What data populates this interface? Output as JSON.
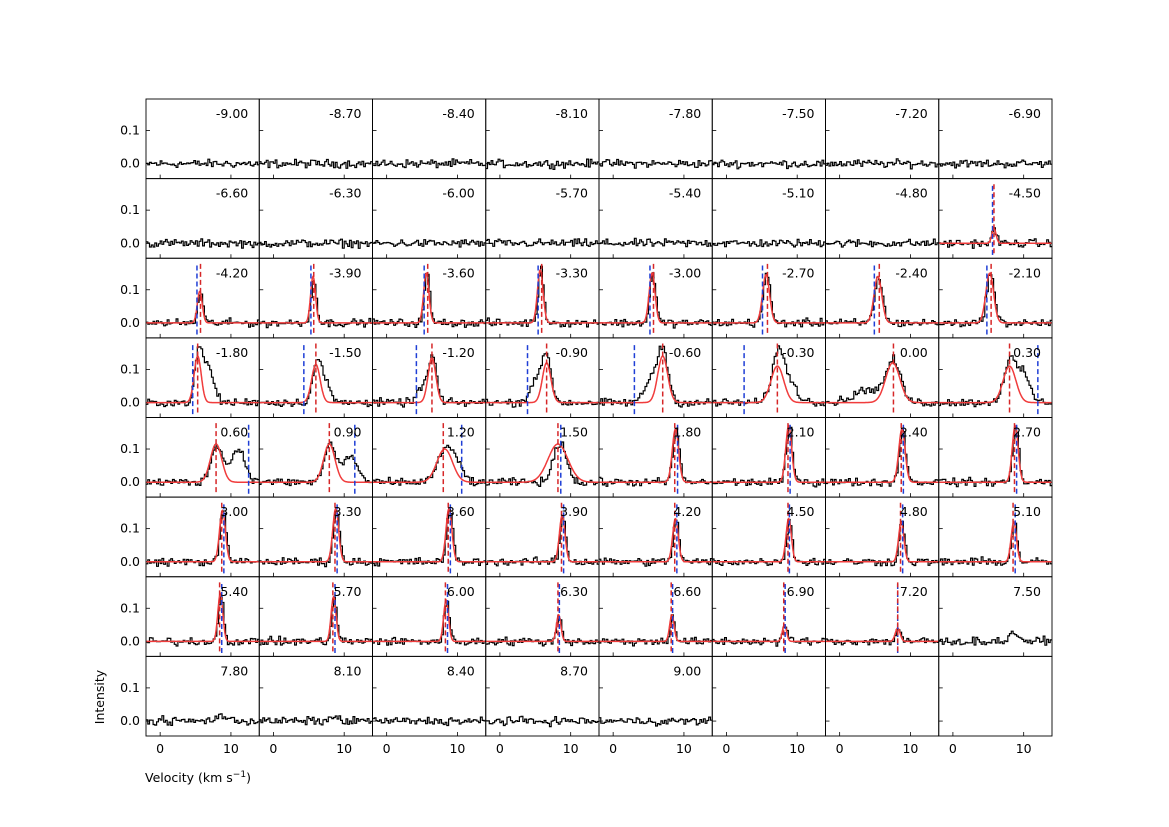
{
  "chart_data": {
    "type": "line",
    "layout": {
      "rows": 8,
      "cols": 8
    },
    "xlabel": "Velocity (km s",
    "xlabel_sup": "−1",
    "xlabel_close": ")",
    "ylabel": "Intensity",
    "xlim": [
      -2,
      14
    ],
    "ylim": [
      -0.045,
      0.195
    ],
    "xticks": [
      0,
      10
    ],
    "xtick_labels": [
      "0",
      "10"
    ],
    "yticks": [
      0.0,
      0.1
    ],
    "ytick_labels": [
      "0.0",
      "0.1"
    ],
    "colors": {
      "spectrum": "#000000",
      "fit": "#f03c3c",
      "fit_center": "#d62728",
      "second_component": "#1f3fd6"
    },
    "panels": [
      {
        "label": "-9.00"
      },
      {
        "label": "-8.70"
      },
      {
        "label": "-8.40"
      },
      {
        "label": "-8.10"
      },
      {
        "label": "-7.80"
      },
      {
        "label": "-7.50"
      },
      {
        "label": "-7.20"
      },
      {
        "label": "-6.90"
      },
      {
        "label": "-6.60"
      },
      {
        "label": "-6.30"
      },
      {
        "label": "-6.00"
      },
      {
        "label": "-5.70"
      },
      {
        "label": "-5.40"
      },
      {
        "label": "-5.10"
      },
      {
        "label": "-4.80"
      },
      {
        "label": "-4.50",
        "peak": {
          "center": 5.8,
          "amp": 0.045,
          "sigma": 0.3
        },
        "fit": {
          "center": 5.8,
          "amp": 0.045,
          "sigma": 0.3
        },
        "red_line": 5.8,
        "blue_line": 5.6
      },
      {
        "label": "-4.20",
        "peak": {
          "center": 5.6,
          "amp": 0.095,
          "sigma": 0.35
        },
        "fit": {
          "center": 5.6,
          "amp": 0.095,
          "sigma": 0.35
        },
        "red_line": 5.7,
        "blue_line": 5.2
      },
      {
        "label": "-3.90",
        "peak": {
          "center": 5.6,
          "amp": 0.14,
          "sigma": 0.35
        },
        "fit": {
          "center": 5.6,
          "amp": 0.14,
          "sigma": 0.35
        },
        "red_line": 5.7,
        "blue_line": 5.3
      },
      {
        "label": "-3.60",
        "peak": {
          "center": 5.6,
          "amp": 0.15,
          "sigma": 0.38
        },
        "fit": {
          "center": 5.6,
          "amp": 0.15,
          "sigma": 0.38
        },
        "red_line": 5.8,
        "blue_line": 5.3
      },
      {
        "label": "-3.30",
        "peak": {
          "center": 5.7,
          "amp": 0.16,
          "sigma": 0.4
        },
        "fit": {
          "center": 5.7,
          "amp": 0.16,
          "sigma": 0.4
        },
        "red_line": 5.9,
        "blue_line": 5.4
      },
      {
        "label": "-3.00",
        "peak": {
          "center": 5.5,
          "amp": 0.15,
          "sigma": 0.42
        },
        "fit": {
          "center": 5.5,
          "amp": 0.15,
          "sigma": 0.42
        },
        "red_line": 5.7,
        "blue_line": 5.2
      },
      {
        "label": "-2.70",
        "peak": {
          "center": 5.6,
          "amp": 0.145,
          "sigma": 0.5
        },
        "fit": {
          "center": 5.6,
          "amp": 0.145,
          "sigma": 0.5
        },
        "red_line": 5.8,
        "blue_line": 5.1
      },
      {
        "label": "-2.40",
        "peak": {
          "center": 5.4,
          "amp": 0.14,
          "sigma": 0.55
        },
        "fit": {
          "center": 5.4,
          "amp": 0.14,
          "sigma": 0.55
        },
        "red_line": 5.6,
        "blue_line": 4.9
      },
      {
        "label": "-2.10",
        "peak": {
          "center": 5.2,
          "amp": 0.15,
          "sigma": 0.55
        },
        "fit": {
          "center": 5.2,
          "amp": 0.15,
          "sigma": 0.55
        },
        "red_line": 5.4,
        "blue_line": 4.8
      },
      {
        "label": "-1.80",
        "peak": {
          "center": 5.3,
          "amp": 0.14,
          "sigma": 0.5
        },
        "peak2": {
          "center": 6.6,
          "amp": 0.11,
          "sigma": 0.8
        },
        "fit": {
          "center": 5.3,
          "amp": 0.14,
          "sigma": 0.5
        },
        "red_line": 5.3,
        "blue_line": 4.6
      },
      {
        "label": "-1.50",
        "peak": {
          "center": 6.0,
          "amp": 0.115,
          "sigma": 0.6
        },
        "peak2": {
          "center": 7.2,
          "amp": 0.06,
          "sigma": 0.7
        },
        "fit": {
          "center": 6.0,
          "amp": 0.115,
          "sigma": 0.6
        },
        "red_line": 6.0,
        "blue_line": 4.3
      },
      {
        "label": "-1.20",
        "peak": {
          "center": 6.4,
          "amp": 0.135,
          "sigma": 0.55
        },
        "peak2": {
          "center": 5.0,
          "amp": 0.05,
          "sigma": 0.7
        },
        "fit": {
          "center": 6.4,
          "amp": 0.135,
          "sigma": 0.55
        },
        "red_line": 6.4,
        "blue_line": 4.2
      },
      {
        "label": "-0.90",
        "peak": {
          "center": 6.6,
          "amp": 0.12,
          "sigma": 0.6
        },
        "peak2": {
          "center": 5.2,
          "amp": 0.08,
          "sigma": 0.9
        },
        "fit": {
          "center": 6.6,
          "amp": 0.12,
          "sigma": 0.6
        },
        "red_line": 6.6,
        "blue_line": 3.9
      },
      {
        "label": "-0.60",
        "peak": {
          "center": 7.0,
          "amp": 0.14,
          "sigma": 0.7
        },
        "peak2": {
          "center": 5.5,
          "amp": 0.08,
          "sigma": 1.0
        },
        "fit": {
          "center": 7.0,
          "amp": 0.14,
          "sigma": 0.7
        },
        "red_line": 7.0,
        "blue_line": 3.0
      },
      {
        "label": "-0.30",
        "peak": {
          "center": 7.2,
          "amp": 0.15,
          "sigma": 0.9
        },
        "peak2": {
          "center": 9.0,
          "amp": 0.05,
          "sigma": 1.0
        },
        "fit": {
          "center": 7.2,
          "amp": 0.11,
          "sigma": 0.9
        },
        "red_line": 7.2,
        "blue_line": 2.5
      },
      {
        "label": "0.00",
        "peak": {
          "center": 7.5,
          "amp": 0.12,
          "sigma": 1.0
        },
        "peak2": {
          "center": 4.0,
          "amp": 0.04,
          "sigma": 2.0
        },
        "fit": {
          "center": 7.5,
          "amp": 0.12,
          "sigma": 1.0
        },
        "red_line": 7.6
      },
      {
        "label": "0.30",
        "peak": {
          "center": 8.0,
          "amp": 0.13,
          "sigma": 0.9
        },
        "peak2": {
          "center": 10.0,
          "amp": 0.08,
          "sigma": 0.8
        },
        "fit": {
          "center": 8.0,
          "amp": 0.11,
          "sigma": 0.9
        },
        "red_line": 8.0,
        "blue_line": 12.0
      },
      {
        "label": "0.60",
        "peak": {
          "center": 7.9,
          "amp": 0.115,
          "sigma": 0.8
        },
        "peak2": {
          "center": 10.9,
          "amp": 0.1,
          "sigma": 1.0
        },
        "fit": {
          "center": 7.9,
          "amp": 0.115,
          "sigma": 0.8
        },
        "red_line": 7.9,
        "blue_line": 12.5
      },
      {
        "label": "0.90",
        "peak": {
          "center": 7.9,
          "amp": 0.115,
          "sigma": 0.8
        },
        "peak2": {
          "center": 10.7,
          "amp": 0.08,
          "sigma": 1.0
        },
        "fit": {
          "center": 7.9,
          "amp": 0.115,
          "sigma": 0.8
        },
        "red_line": 7.9,
        "blue_line": 11.5
      },
      {
        "label": "1.20",
        "peak": {
          "center": 8.2,
          "amp": 0.1,
          "sigma": 1.1
        },
        "peak2": {
          "center": 10.0,
          "amp": 0.04,
          "sigma": 0.8
        },
        "fit": {
          "center": 8.2,
          "amp": 0.1,
          "sigma": 1.1
        },
        "red_line": 8.0,
        "blue_line": 10.6
      },
      {
        "label": "1.50",
        "peak": {
          "center": 8.4,
          "amp": 0.12,
          "sigma": 0.9
        },
        "fit": {
          "center": 8.2,
          "amp": 0.115,
          "sigma": 1.4
        },
        "red_line": 8.2,
        "blue_line": 8.6
      },
      {
        "label": "1.80",
        "peak": {
          "center": 8.8,
          "amp": 0.16,
          "sigma": 0.45
        },
        "fit": {
          "center": 8.8,
          "amp": 0.16,
          "sigma": 0.45
        },
        "red_line": 8.7,
        "blue_line": 9.1
      },
      {
        "label": "2.10",
        "peak": {
          "center": 8.8,
          "amp": 0.17,
          "sigma": 0.42
        },
        "fit": {
          "center": 8.8,
          "amp": 0.17,
          "sigma": 0.42
        },
        "red_line": 8.7,
        "blue_line": 9.0
      },
      {
        "label": "2.40",
        "peak": {
          "center": 8.8,
          "amp": 0.16,
          "sigma": 0.45
        },
        "fit": {
          "center": 8.8,
          "amp": 0.16,
          "sigma": 0.45
        },
        "red_line": 8.7,
        "blue_line": 9.0
      },
      {
        "label": "2.70",
        "peak": {
          "center": 8.8,
          "amp": 0.17,
          "sigma": 0.42
        },
        "fit": {
          "center": 8.8,
          "amp": 0.17,
          "sigma": 0.42
        },
        "red_line": 8.7,
        "blue_line": 9.0
      },
      {
        "label": "3.00",
        "peak": {
          "center": 8.8,
          "amp": 0.155,
          "sigma": 0.42
        },
        "fit": {
          "center": 8.8,
          "amp": 0.155,
          "sigma": 0.42
        },
        "red_line": 8.7,
        "blue_line": 9.0
      },
      {
        "label": "3.30",
        "peak": {
          "center": 8.8,
          "amp": 0.16,
          "sigma": 0.42
        },
        "fit": {
          "center": 8.8,
          "amp": 0.16,
          "sigma": 0.42
        },
        "red_line": 8.7,
        "blue_line": 9.0
      },
      {
        "label": "3.60",
        "peak": {
          "center": 8.8,
          "amp": 0.16,
          "sigma": 0.42
        },
        "fit": {
          "center": 8.8,
          "amp": 0.16,
          "sigma": 0.42
        },
        "red_line": 8.7,
        "blue_line": 9.0
      },
      {
        "label": "3.90",
        "peak": {
          "center": 8.8,
          "amp": 0.14,
          "sigma": 0.4
        },
        "fit": {
          "center": 8.8,
          "amp": 0.14,
          "sigma": 0.4
        },
        "red_line": 8.7,
        "blue_line": 9.0
      },
      {
        "label": "4.20",
        "peak": {
          "center": 8.8,
          "amp": 0.13,
          "sigma": 0.4
        },
        "fit": {
          "center": 8.8,
          "amp": 0.13,
          "sigma": 0.4
        },
        "red_line": 8.7,
        "blue_line": 9.0
      },
      {
        "label": "4.50",
        "peak": {
          "center": 8.8,
          "amp": 0.13,
          "sigma": 0.38
        },
        "fit": {
          "center": 8.8,
          "amp": 0.13,
          "sigma": 0.38
        },
        "red_line": 8.7,
        "blue_line": 8.9
      },
      {
        "label": "4.80",
        "peak": {
          "center": 8.7,
          "amp": 0.12,
          "sigma": 0.38
        },
        "fit": {
          "center": 8.7,
          "amp": 0.12,
          "sigma": 0.38
        },
        "red_line": 8.6,
        "blue_line": 8.9
      },
      {
        "label": "5.10",
        "peak": {
          "center": 8.6,
          "amp": 0.12,
          "sigma": 0.38
        },
        "fit": {
          "center": 8.6,
          "amp": 0.12,
          "sigma": 0.38
        },
        "red_line": 8.5,
        "blue_line": 8.8
      },
      {
        "label": "5.40",
        "peak": {
          "center": 8.5,
          "amp": 0.145,
          "sigma": 0.35
        },
        "fit": {
          "center": 8.5,
          "amp": 0.145,
          "sigma": 0.35
        },
        "red_line": 8.4,
        "blue_line": 8.7
      },
      {
        "label": "5.70",
        "peak": {
          "center": 8.5,
          "amp": 0.135,
          "sigma": 0.35
        },
        "fit": {
          "center": 8.5,
          "amp": 0.135,
          "sigma": 0.35
        },
        "red_line": 8.4,
        "blue_line": 8.7
      },
      {
        "label": "6.00",
        "peak": {
          "center": 8.4,
          "amp": 0.125,
          "sigma": 0.35
        },
        "fit": {
          "center": 8.4,
          "amp": 0.125,
          "sigma": 0.35
        },
        "red_line": 8.3,
        "blue_line": 8.6
      },
      {
        "label": "6.30",
        "peak": {
          "center": 8.3,
          "amp": 0.08,
          "sigma": 0.32
        },
        "fit": {
          "center": 8.3,
          "amp": 0.08,
          "sigma": 0.32
        },
        "red_line": 8.2,
        "blue_line": 8.4
      },
      {
        "label": "6.60",
        "peak": {
          "center": 8.3,
          "amp": 0.08,
          "sigma": 0.32
        },
        "fit": {
          "center": 8.3,
          "amp": 0.08,
          "sigma": 0.32
        },
        "red_line": 8.2,
        "blue_line": 8.4
      },
      {
        "label": "6.90",
        "peak": {
          "center": 8.2,
          "amp": 0.05,
          "sigma": 0.3
        },
        "fit": {
          "center": 8.2,
          "amp": 0.05,
          "sigma": 0.3
        },
        "red_line": 8.1,
        "blue_line": 8.3
      },
      {
        "label": "7.20",
        "peak": {
          "center": 8.2,
          "amp": 0.04,
          "sigma": 0.35
        },
        "fit": {
          "center": 8.2,
          "amp": 0.04,
          "sigma": 0.35
        },
        "red_line": 8.2,
        "blue_line": 8.2
      },
      {
        "label": "7.50",
        "peak": {
          "center": 8.6,
          "amp": 0.025,
          "sigma": 0.7
        }
      },
      {
        "label": "7.80",
        "peak": {
          "center": 8.4,
          "amp": 0.018,
          "sigma": 0.7
        }
      },
      {
        "label": "8.10",
        "peak": {
          "center": 8.4,
          "amp": 0.01,
          "sigma": 0.7
        }
      },
      {
        "label": "8.40"
      },
      {
        "label": "8.70"
      },
      {
        "label": "9.00"
      },
      {
        "label": ""
      },
      {
        "label": ""
      },
      {
        "label": ""
      }
    ]
  }
}
